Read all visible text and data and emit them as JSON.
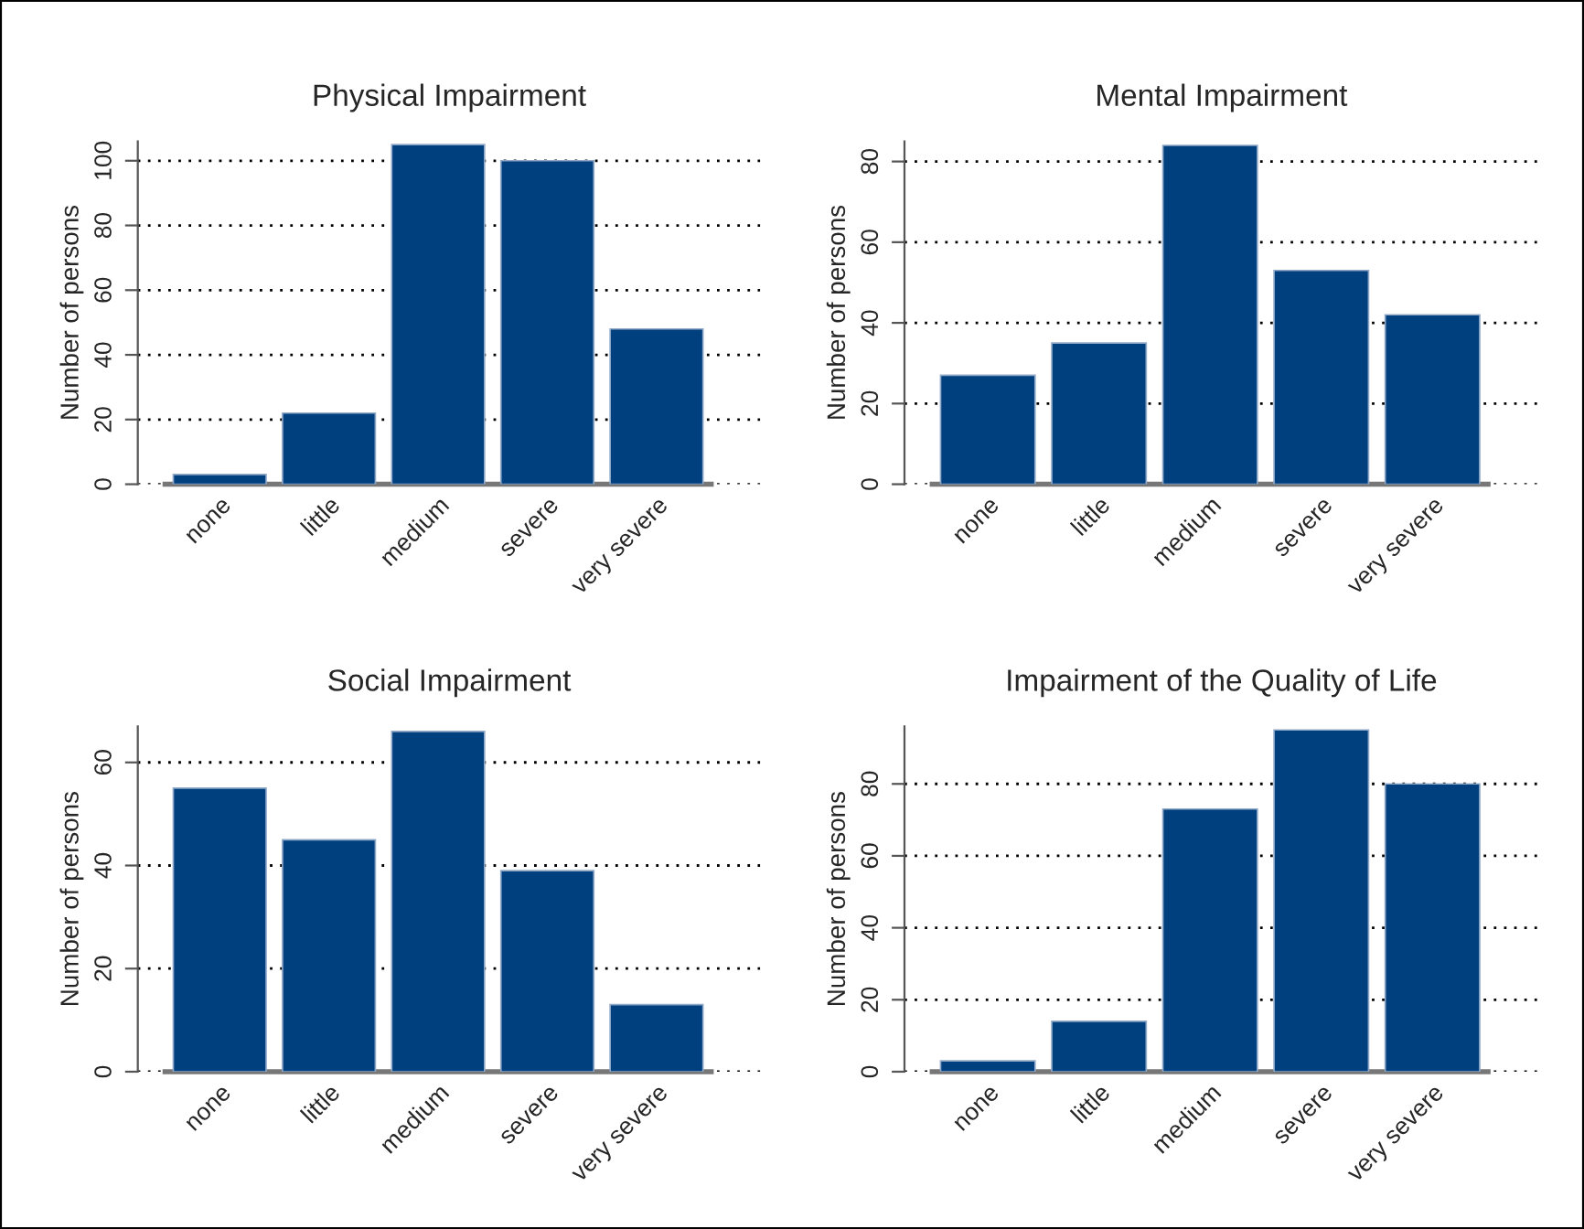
{
  "chart_data": [
    {
      "type": "bar",
      "title": "Physical Impairment",
      "ylabel": "Number of persons",
      "categories": [
        "none",
        "little",
        "medium",
        "severe",
        "very severe"
      ],
      "values": [
        3,
        22,
        105,
        100,
        48
      ],
      "color": "#00407f",
      "ylim": [
        0,
        106
      ],
      "yticks": [
        0,
        20,
        40,
        60,
        80,
        100
      ],
      "grid": "y"
    },
    {
      "type": "bar",
      "title": "Mental Impairment",
      "ylabel": "Number of persons",
      "categories": [
        "none",
        "little",
        "medium",
        "severe",
        "very severe"
      ],
      "values": [
        27,
        35,
        84,
        53,
        42
      ],
      "color": "#00407f",
      "ylim": [
        0,
        85
      ],
      "yticks": [
        0,
        20,
        40,
        60,
        80
      ],
      "grid": "y"
    },
    {
      "type": "bar",
      "title": "Social Impairment",
      "ylabel": "Number of persons",
      "categories": [
        "none",
        "little",
        "medium",
        "severe",
        "very severe"
      ],
      "values": [
        55,
        45,
        66,
        39,
        13
      ],
      "color": "#00407f",
      "ylim": [
        0,
        67
      ],
      "yticks": [
        0,
        20,
        40,
        60
      ],
      "grid": "y"
    },
    {
      "type": "bar",
      "title": "Impairment of the Quality of Life",
      "ylabel": "Number of persons",
      "categories": [
        "none",
        "little",
        "medium",
        "severe",
        "very severe"
      ],
      "values": [
        3,
        14,
        73,
        95,
        80
      ],
      "color": "#00407f",
      "ylim": [
        0,
        96
      ],
      "yticks": [
        0,
        20,
        40,
        60,
        80
      ],
      "grid": "y"
    }
  ]
}
